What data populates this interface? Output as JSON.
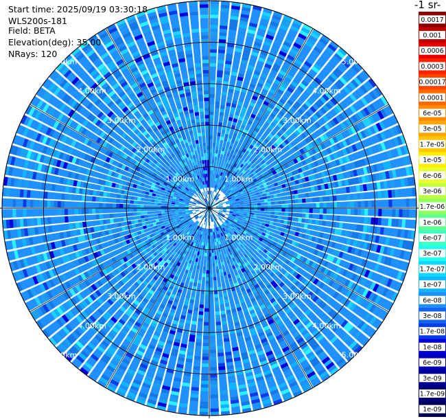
{
  "header": {
    "start_time": "Start time: 2025/09/19 03:30:18",
    "instrument": "WLS200s-181",
    "field": "Field: BETA",
    "elevation": "Elevation(deg): 35.00",
    "nrays": "NRays: 120"
  },
  "colorbar": {
    "title": "-1 sr-",
    "labels": [
      "0.0017",
      "0.001",
      "0.0006",
      "0.0003",
      "0.00017",
      "0.0001",
      "6e-05",
      "3e-05",
      "1.7e-05",
      "1e-05",
      "6e-06",
      "3e-06",
      "1.7e-06",
      "1e-06",
      "6e-07",
      "3e-07",
      "1.7e-07",
      "1e-07",
      "6e-08",
      "3e-08",
      "1.7e-08",
      "1e-08",
      "6e-09",
      "3e-09",
      "1.7e-09",
      "1e-09"
    ],
    "colors": [
      "#8b0000",
      "#c00000",
      "#e60000",
      "#ff2000",
      "#ff4500",
      "#ff6a00",
      "#ff8c00",
      "#ffa500",
      "#ffc800",
      "#ffee00",
      "#e8ff30",
      "#c0ff40",
      "#90ff60",
      "#60ff90",
      "#40ffc0",
      "#20ffee",
      "#10d8ff",
      "#10b4ff",
      "#1e90ff",
      "#1464f0",
      "#0a3ce6",
      "#0000dc",
      "#0000b4",
      "#000096",
      "#000078",
      "#00005a"
    ]
  },
  "chart_data": {
    "type": "heatmap",
    "subtype": "radar-ppi",
    "field": "BETA",
    "nrays": 120,
    "elevation_deg": 35.0,
    "range_rings_km": [
      1,
      2,
      3,
      4,
      5
    ],
    "ring_labels": [
      "1.00km",
      "2.00km",
      "3.00km",
      "4.00km",
      "5.00km"
    ],
    "max_range_km": 5.0,
    "value_range": [
      1e-09,
      0.0017
    ],
    "dominant_value_range": [
      1.7e-08,
      1.7e-07
    ],
    "colorscale": "log"
  }
}
